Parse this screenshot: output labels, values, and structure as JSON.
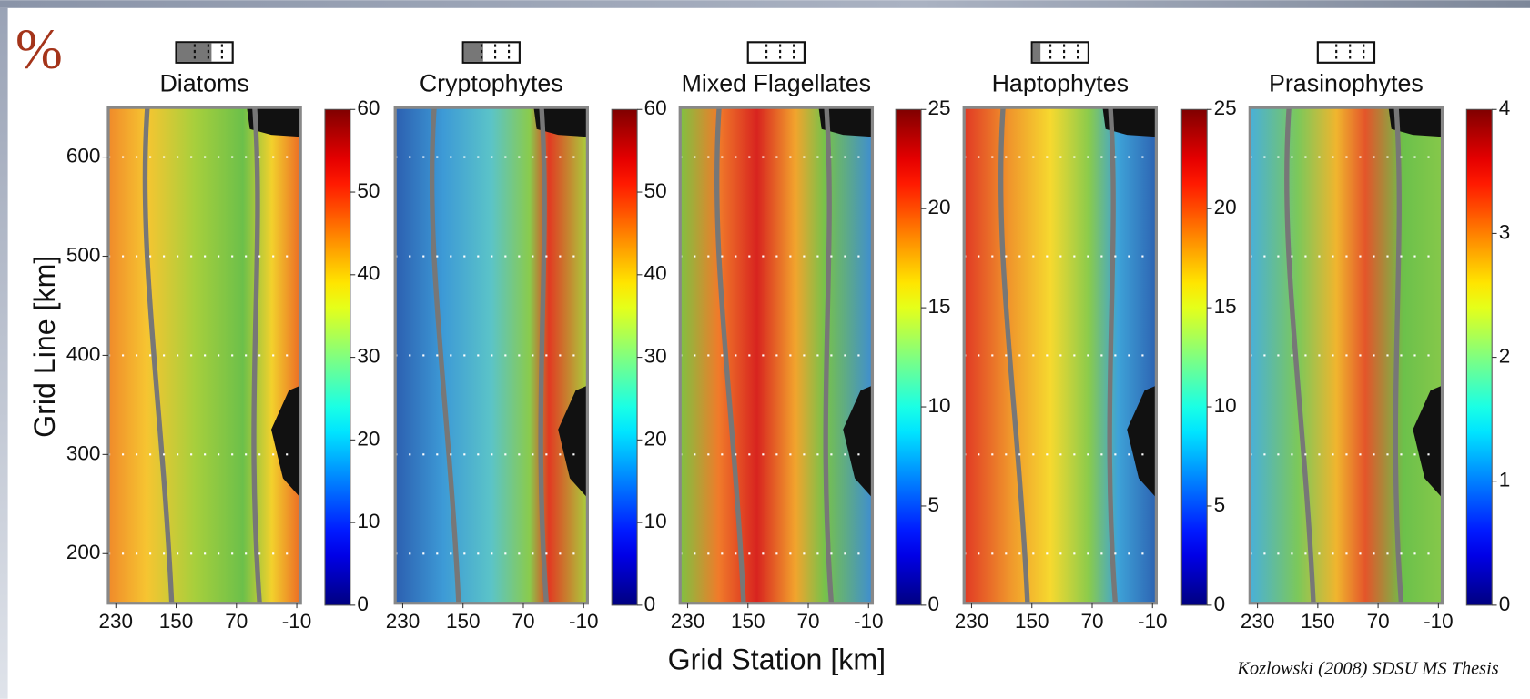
{
  "page": {
    "symbol": "%",
    "xlabel": "Grid Station [km]",
    "ylabel": "Grid Line [km]",
    "credit": "Kozlowski (2008) SDSU MS Thesis"
  },
  "chart_data": [
    {
      "type": "heatmap",
      "title": "Diatoms",
      "xlim": [
        240,
        -15
      ],
      "xticks": [
        230,
        150,
        70,
        -10
      ],
      "ylim": [
        150,
        650
      ],
      "yticks": [
        200,
        300,
        400,
        500,
        600
      ],
      "colormap": "jet",
      "clim": [
        0,
        60
      ],
      "cticks": [
        0,
        10,
        20,
        30,
        40,
        50,
        60
      ]
    },
    {
      "type": "heatmap",
      "title": "Cryptophytes",
      "xlim": [
        240,
        -15
      ],
      "xticks": [
        230,
        150,
        70,
        -10
      ],
      "ylim": [
        150,
        650
      ],
      "colormap": "jet",
      "clim": [
        0,
        60
      ],
      "cticks": [
        0,
        10,
        20,
        30,
        40,
        50,
        60
      ]
    },
    {
      "type": "heatmap",
      "title": "Mixed Flagellates",
      "xlim": [
        240,
        -15
      ],
      "xticks": [
        230,
        150,
        70,
        -10
      ],
      "ylim": [
        150,
        650
      ],
      "colormap": "jet",
      "clim": [
        0,
        25
      ],
      "cticks": [
        0,
        5,
        10,
        15,
        20,
        25
      ]
    },
    {
      "type": "heatmap",
      "title": "Haptophytes",
      "xlim": [
        240,
        -15
      ],
      "xticks": [
        230,
        150,
        70,
        -10
      ],
      "ylim": [
        150,
        650
      ],
      "colormap": "jet",
      "clim": [
        0,
        25
      ],
      "cticks": [
        0,
        5,
        10,
        15,
        20,
        25
      ]
    },
    {
      "type": "heatmap",
      "title": "Prasinophytes",
      "xlim": [
        240,
        -15
      ],
      "xticks": [
        230,
        150,
        70,
        -10
      ],
      "ylim": [
        150,
        650
      ],
      "colormap": "jet",
      "clim": [
        0,
        4
      ],
      "cticks": [
        0,
        1,
        2,
        3,
        4
      ]
    }
  ]
}
